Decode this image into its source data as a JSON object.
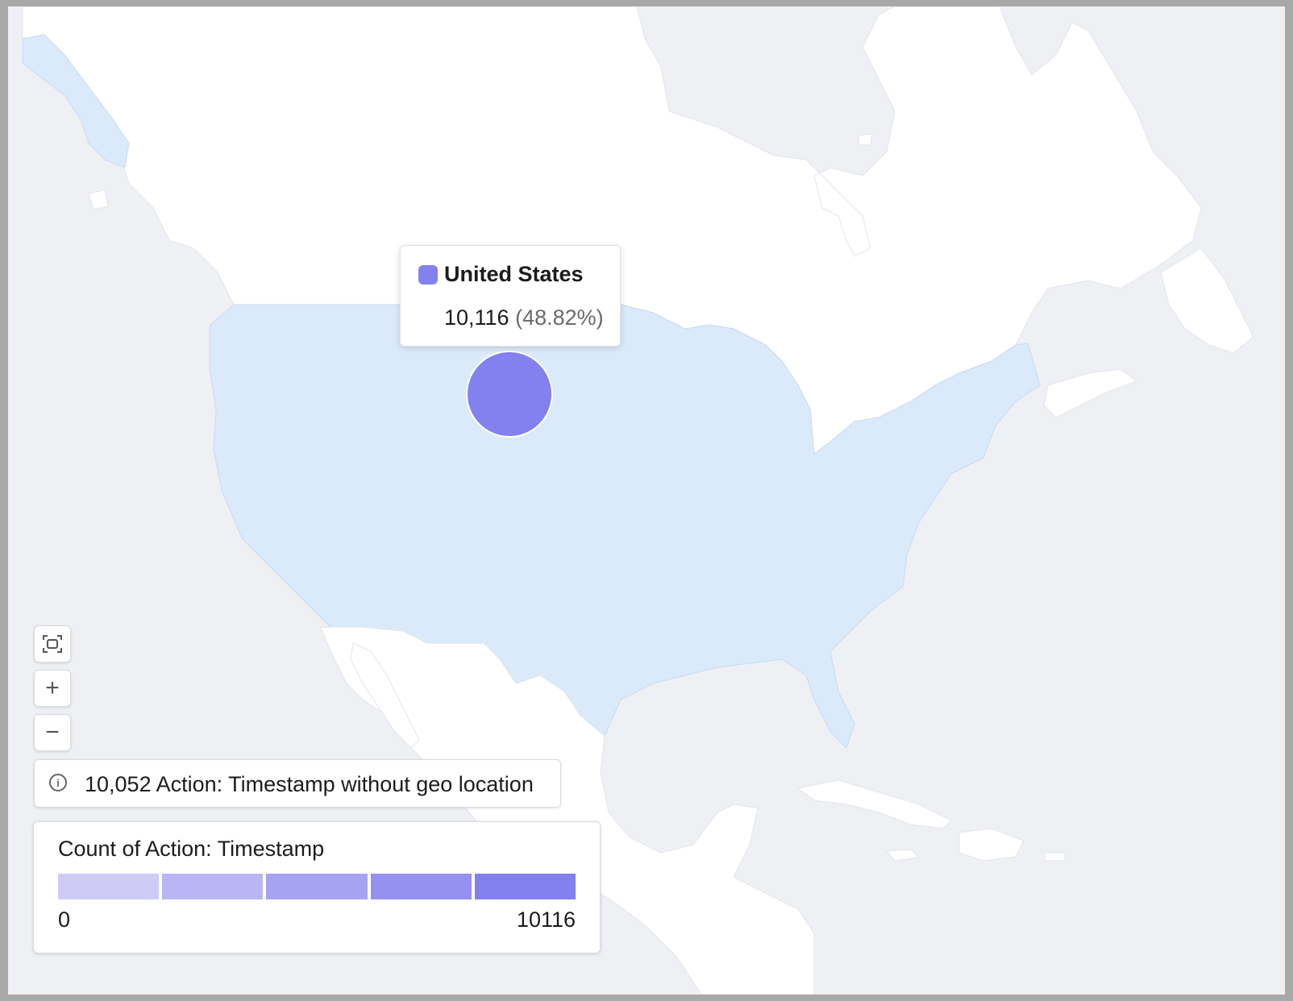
{
  "tooltip": {
    "country": "United States",
    "value": "10,116",
    "percent": "(48.82%)",
    "color": "#8380f0"
  },
  "map": {
    "highlighted_region": "United States",
    "region_fill": "#dbeafb",
    "land_fill": "#ffffff",
    "water_fill": "#eef0f4",
    "marker": {
      "country": "United States",
      "value": 10116,
      "color": "#8380f0"
    }
  },
  "controls": {
    "fit_icon": "fit-bounds-icon",
    "zoom_in_label": "+",
    "zoom_out_label": "−"
  },
  "info": {
    "icon": "info-icon",
    "text": "10,052 Action: Timestamp without geo location"
  },
  "legend": {
    "title": "Count of Action: Timestamp",
    "min": "0",
    "max": "10116",
    "colors": [
      "#cfcbf7",
      "#bab6f5",
      "#a7a3f3",
      "#9591f1",
      "#8380f0"
    ]
  }
}
